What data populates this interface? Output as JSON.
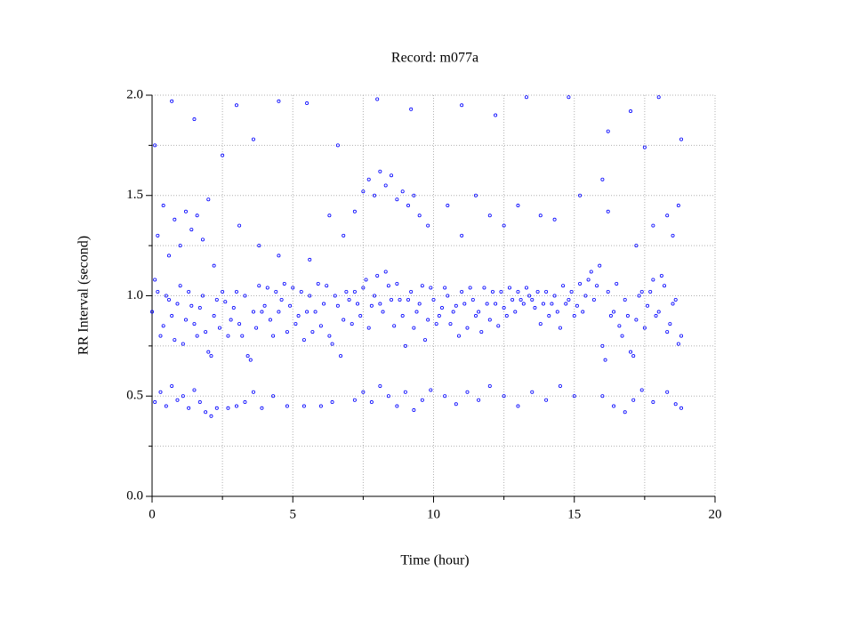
{
  "chart_data": {
    "type": "scatter",
    "title": "Record:  m077a",
    "x_label": "Time (hour)",
    "y_label": "RR Interval (second)",
    "xlim": [
      0,
      20
    ],
    "ylim": [
      0,
      2
    ],
    "xticks": [
      0,
      5,
      10,
      15,
      20
    ],
    "yticks": [
      {
        "value": 0,
        "label": "0.0"
      },
      {
        "value": 0.5,
        "label": "0.5"
      },
      {
        "value": 1,
        "label": "1.0"
      },
      {
        "value": 1.5,
        "label": "1.5"
      },
      {
        "value": 2,
        "label": "2.0"
      }
    ],
    "minor_xticks": [
      2.5,
      7.5,
      12.5,
      17.5
    ],
    "minor_yticks": [
      0.25,
      0.75,
      1.25,
      1.75
    ],
    "grid": true,
    "series": [
      {
        "color": "#0000ff",
        "points": [
          [
            0.0,
            0.92
          ],
          [
            0.2,
            1.02
          ],
          [
            0.4,
            0.85
          ],
          [
            0.6,
            0.98
          ],
          [
            0.8,
            0.78
          ],
          [
            1.0,
            1.05
          ],
          [
            1.2,
            0.88
          ],
          [
            1.4,
            0.95
          ],
          [
            1.6,
            0.8
          ],
          [
            1.8,
            1.0
          ],
          [
            2.0,
            0.72
          ],
          [
            2.2,
            0.9
          ],
          [
            2.4,
            0.84
          ],
          [
            2.6,
            0.97
          ],
          [
            2.8,
            0.88
          ],
          [
            3.0,
            1.02
          ],
          [
            3.2,
            0.8
          ],
          [
            3.4,
            0.7
          ],
          [
            3.6,
            0.92
          ],
          [
            3.8,
            1.05
          ],
          [
            4.0,
            0.95
          ],
          [
            4.2,
            0.88
          ],
          [
            4.4,
            1.02
          ],
          [
            4.6,
            0.98
          ],
          [
            4.8,
            0.82
          ],
          [
            5.0,
            1.04
          ],
          [
            5.2,
            0.9
          ],
          [
            5.4,
            0.78
          ],
          [
            5.6,
            1.0
          ],
          [
            5.8,
            0.92
          ],
          [
            6.0,
            0.85
          ],
          [
            6.2,
            1.05
          ],
          [
            6.4,
            0.76
          ],
          [
            6.6,
            0.95
          ],
          [
            6.8,
            0.88
          ],
          [
            7.0,
            0.98
          ],
          [
            7.2,
            1.02
          ],
          [
            7.4,
            0.9
          ],
          [
            7.6,
            1.08
          ],
          [
            7.8,
            0.95
          ],
          [
            8.0,
            1.1
          ],
          [
            8.2,
            0.92
          ],
          [
            8.4,
            1.05
          ],
          [
            8.6,
            0.85
          ],
          [
            8.8,
            0.98
          ],
          [
            9.0,
            0.75
          ],
          [
            9.2,
            1.02
          ],
          [
            9.4,
            0.92
          ],
          [
            9.6,
            1.05
          ],
          [
            9.8,
            0.88
          ],
          [
            10.0,
            0.98
          ],
          [
            10.2,
            0.9
          ],
          [
            10.4,
            1.04
          ],
          [
            10.6,
            0.86
          ],
          [
            10.8,
            0.95
          ],
          [
            11.0,
            1.02
          ],
          [
            11.2,
            0.84
          ],
          [
            11.4,
            0.98
          ],
          [
            11.6,
            0.92
          ],
          [
            11.8,
            1.04
          ],
          [
            12.0,
            0.88
          ],
          [
            12.2,
            0.96
          ],
          [
            12.4,
            1.02
          ],
          [
            12.6,
            0.9
          ],
          [
            12.8,
            0.98
          ],
          [
            13.0,
            1.02
          ],
          [
            13.2,
            0.96
          ],
          [
            13.4,
            1.0
          ],
          [
            13.6,
            0.94
          ],
          [
            13.8,
            0.86
          ],
          [
            14.0,
            1.02
          ],
          [
            14.2,
            0.96
          ],
          [
            14.4,
            0.92
          ],
          [
            14.6,
            1.05
          ],
          [
            14.8,
            0.98
          ],
          [
            15.0,
            0.9
          ],
          [
            15.2,
            1.06
          ],
          [
            15.4,
            1.0
          ],
          [
            15.6,
            1.12
          ],
          [
            15.8,
            1.05
          ],
          [
            16.0,
            0.75
          ],
          [
            16.2,
            1.02
          ],
          [
            16.4,
            0.92
          ],
          [
            16.6,
            0.85
          ],
          [
            16.8,
            0.98
          ],
          [
            17.0,
            0.72
          ],
          [
            17.2,
            0.88
          ],
          [
            17.4,
            1.02
          ],
          [
            17.6,
            0.95
          ],
          [
            17.8,
            1.08
          ],
          [
            18.0,
            0.92
          ],
          [
            18.2,
            1.05
          ],
          [
            18.4,
            0.86
          ],
          [
            18.6,
            0.98
          ],
          [
            18.8,
            0.8
          ],
          [
            0.1,
            1.08
          ],
          [
            0.3,
            0.8
          ],
          [
            0.5,
            1.0
          ],
          [
            0.7,
            0.9
          ],
          [
            0.9,
            0.96
          ],
          [
            1.1,
            0.76
          ],
          [
            1.3,
            1.02
          ],
          [
            1.5,
            0.86
          ],
          [
            1.7,
            0.94
          ],
          [
            1.9,
            0.82
          ],
          [
            2.1,
            0.7
          ],
          [
            2.3,
            0.98
          ],
          [
            2.5,
            1.02
          ],
          [
            2.7,
            0.8
          ],
          [
            2.9,
            0.94
          ],
          [
            3.1,
            0.86
          ],
          [
            3.3,
            1.0
          ],
          [
            3.5,
            0.68
          ],
          [
            3.7,
            0.84
          ],
          [
            3.9,
            0.92
          ],
          [
            4.1,
            1.04
          ],
          [
            4.3,
            0.8
          ],
          [
            4.5,
            0.92
          ],
          [
            4.7,
            1.06
          ],
          [
            4.9,
            0.95
          ],
          [
            5.1,
            0.86
          ],
          [
            5.3,
            1.02
          ],
          [
            5.5,
            0.92
          ],
          [
            5.7,
            0.82
          ],
          [
            5.9,
            1.06
          ],
          [
            6.1,
            0.96
          ],
          [
            6.3,
            0.8
          ],
          [
            6.5,
            1.0
          ],
          [
            6.7,
            0.7
          ],
          [
            6.9,
            1.02
          ],
          [
            7.1,
            0.86
          ],
          [
            7.3,
            0.96
          ],
          [
            7.5,
            1.04
          ],
          [
            7.7,
            0.84
          ],
          [
            7.9,
            1.0
          ],
          [
            8.1,
            0.96
          ],
          [
            8.3,
            1.12
          ],
          [
            8.5,
            0.98
          ],
          [
            8.7,
            1.06
          ],
          [
            8.9,
            0.9
          ],
          [
            9.1,
            0.98
          ],
          [
            9.3,
            0.84
          ],
          [
            9.5,
            0.96
          ],
          [
            9.7,
            0.78
          ],
          [
            9.9,
            1.04
          ],
          [
            10.1,
            0.86
          ],
          [
            10.3,
            0.94
          ],
          [
            10.5,
            1.0
          ],
          [
            10.7,
            0.92
          ],
          [
            10.9,
            0.8
          ],
          [
            11.1,
            0.96
          ],
          [
            11.3,
            1.04
          ],
          [
            11.5,
            0.9
          ],
          [
            11.7,
            0.82
          ],
          [
            11.9,
            0.96
          ],
          [
            12.1,
            1.02
          ],
          [
            12.3,
            0.85
          ],
          [
            12.5,
            0.94
          ],
          [
            12.7,
            1.04
          ],
          [
            12.9,
            0.92
          ],
          [
            13.1,
            0.98
          ],
          [
            13.3,
            1.04
          ],
          [
            13.5,
            0.98
          ],
          [
            13.7,
            1.02
          ],
          [
            13.9,
            0.96
          ],
          [
            14.1,
            0.9
          ],
          [
            14.3,
            1.0
          ],
          [
            14.5,
            0.84
          ],
          [
            14.7,
            0.96
          ],
          [
            14.9,
            1.02
          ],
          [
            15.1,
            0.95
          ],
          [
            15.3,
            0.92
          ],
          [
            15.5,
            1.08
          ],
          [
            15.7,
            0.98
          ],
          [
            15.9,
            1.15
          ],
          [
            16.1,
            0.68
          ],
          [
            16.3,
            0.9
          ],
          [
            16.5,
            1.06
          ],
          [
            16.7,
            0.8
          ],
          [
            16.9,
            0.9
          ],
          [
            17.1,
            0.7
          ],
          [
            17.3,
            1.0
          ],
          [
            17.5,
            0.84
          ],
          [
            17.7,
            1.02
          ],
          [
            17.9,
            0.9
          ],
          [
            18.1,
            1.1
          ],
          [
            18.3,
            0.82
          ],
          [
            18.5,
            0.96
          ],
          [
            18.7,
            0.76
          ],
          [
            0.1,
            0.47
          ],
          [
            0.3,
            0.52
          ],
          [
            0.5,
            0.45
          ],
          [
            0.7,
            0.55
          ],
          [
            0.9,
            0.48
          ],
          [
            1.1,
            0.5
          ],
          [
            1.3,
            0.44
          ],
          [
            1.5,
            0.53
          ],
          [
            1.7,
            0.47
          ],
          [
            1.9,
            0.42
          ],
          [
            2.1,
            0.4
          ],
          [
            2.3,
            0.44
          ],
          [
            2.7,
            0.44
          ],
          [
            3.0,
            0.45
          ],
          [
            3.3,
            0.47
          ],
          [
            3.6,
            0.52
          ],
          [
            3.9,
            0.44
          ],
          [
            4.3,
            0.5
          ],
          [
            4.8,
            0.45
          ],
          [
            5.4,
            0.45
          ],
          [
            6.0,
            0.45
          ],
          [
            6.4,
            0.47
          ],
          [
            7.2,
            0.48
          ],
          [
            7.5,
            0.52
          ],
          [
            7.8,
            0.47
          ],
          [
            8.1,
            0.55
          ],
          [
            8.4,
            0.5
          ],
          [
            8.7,
            0.45
          ],
          [
            9.0,
            0.52
          ],
          [
            9.3,
            0.43
          ],
          [
            9.6,
            0.48
          ],
          [
            9.9,
            0.53
          ],
          [
            10.4,
            0.5
          ],
          [
            10.8,
            0.46
          ],
          [
            11.2,
            0.52
          ],
          [
            11.6,
            0.48
          ],
          [
            12.0,
            0.55
          ],
          [
            12.5,
            0.5
          ],
          [
            13.0,
            0.45
          ],
          [
            13.5,
            0.52
          ],
          [
            14.0,
            0.48
          ],
          [
            14.5,
            0.55
          ],
          [
            15.0,
            0.5
          ],
          [
            16.0,
            0.5
          ],
          [
            16.4,
            0.45
          ],
          [
            16.8,
            0.42
          ],
          [
            17.1,
            0.48
          ],
          [
            17.4,
            0.53
          ],
          [
            17.8,
            0.47
          ],
          [
            18.3,
            0.52
          ],
          [
            18.6,
            0.46
          ],
          [
            18.8,
            0.44
          ],
          [
            0.2,
            1.3
          ],
          [
            0.4,
            1.45
          ],
          [
            0.6,
            1.2
          ],
          [
            0.8,
            1.38
          ],
          [
            1.0,
            1.25
          ],
          [
            1.2,
            1.42
          ],
          [
            1.4,
            1.33
          ],
          [
            1.6,
            1.4
          ],
          [
            1.8,
            1.28
          ],
          [
            2.0,
            1.48
          ],
          [
            2.2,
            1.15
          ],
          [
            3.1,
            1.35
          ],
          [
            3.8,
            1.25
          ],
          [
            4.5,
            1.2
          ],
          [
            5.6,
            1.18
          ],
          [
            6.3,
            1.4
          ],
          [
            6.8,
            1.3
          ],
          [
            7.2,
            1.42
          ],
          [
            7.5,
            1.52
          ],
          [
            7.7,
            1.58
          ],
          [
            7.9,
            1.5
          ],
          [
            8.1,
            1.62
          ],
          [
            8.3,
            1.55
          ],
          [
            8.5,
            1.6
          ],
          [
            8.7,
            1.48
          ],
          [
            8.9,
            1.52
          ],
          [
            9.1,
            1.45
          ],
          [
            9.3,
            1.5
          ],
          [
            9.5,
            1.4
          ],
          [
            9.8,
            1.35
          ],
          [
            10.5,
            1.45
          ],
          [
            11.0,
            1.3
          ],
          [
            11.5,
            1.5
          ],
          [
            12.0,
            1.4
          ],
          [
            12.5,
            1.35
          ],
          [
            13.0,
            1.45
          ],
          [
            13.8,
            1.4
          ],
          [
            14.3,
            1.38
          ],
          [
            15.2,
            1.5
          ],
          [
            16.0,
            1.58
          ],
          [
            16.2,
            1.42
          ],
          [
            17.2,
            1.25
          ],
          [
            17.8,
            1.35
          ],
          [
            18.3,
            1.4
          ],
          [
            18.5,
            1.3
          ],
          [
            18.7,
            1.45
          ],
          [
            0.1,
            1.75
          ],
          [
            0.7,
            1.97
          ],
          [
            1.5,
            1.88
          ],
          [
            2.5,
            1.7
          ],
          [
            3.0,
            1.95
          ],
          [
            3.6,
            1.78
          ],
          [
            4.5,
            1.97
          ],
          [
            5.5,
            1.96
          ],
          [
            6.6,
            1.75
          ],
          [
            8.0,
            1.98
          ],
          [
            9.2,
            1.93
          ],
          [
            11.0,
            1.95
          ],
          [
            12.2,
            1.9
          ],
          [
            13.3,
            1.99
          ],
          [
            14.8,
            1.99
          ],
          [
            16.2,
            1.82
          ],
          [
            17.0,
            1.92
          ],
          [
            17.5,
            1.74
          ],
          [
            18.0,
            1.99
          ],
          [
            18.8,
            1.78
          ]
        ]
      }
    ]
  }
}
